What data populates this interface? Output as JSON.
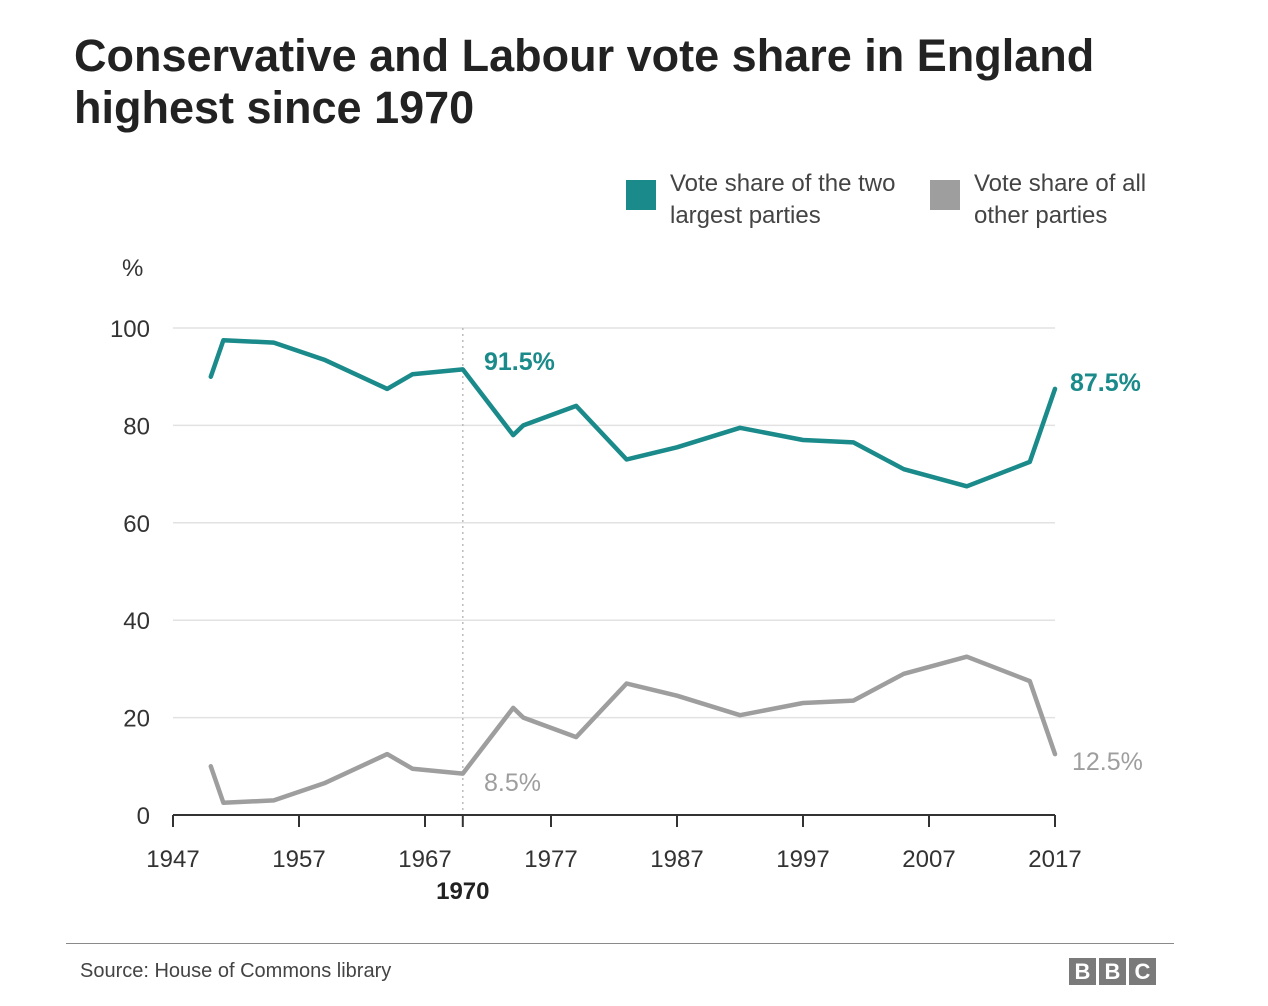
{
  "chart_data": {
    "type": "line",
    "title": "Conservative and Labour vote share in England highest since 1970",
    "ylabel": "%",
    "xlabel": "",
    "ylim": [
      0,
      100
    ],
    "xlim": [
      1947,
      2017
    ],
    "yticks": [
      0,
      20,
      40,
      60,
      80,
      100
    ],
    "xticks": [
      1947,
      1957,
      1967,
      1977,
      1987,
      1997,
      2007,
      2017
    ],
    "highlight_year": {
      "x": 1970,
      "label": "1970"
    },
    "grid": true,
    "legend_position": "top-right",
    "x": [
      1950,
      1951,
      1955,
      1959,
      1964,
      1966,
      1970,
      1974,
      1974.8,
      1979,
      1983,
      1987,
      1992,
      1997,
      2001,
      2005,
      2010,
      2015,
      2017
    ],
    "series": [
      {
        "name": "Vote share of the two largest parties",
        "color": "#1a8a8a",
        "values": [
          90,
          97.5,
          97,
          93.5,
          87.5,
          90.5,
          91.5,
          78,
          80,
          84,
          73,
          75.5,
          79.5,
          77,
          76.5,
          71,
          67.5,
          72.5,
          87.5
        ],
        "end_labels": {
          "1970": "91.5%",
          "2017": "87.5%"
        }
      },
      {
        "name": "Vote share of all other parties",
        "color": "#9e9e9e",
        "values": [
          10,
          2.5,
          3,
          6.5,
          12.5,
          9.5,
          8.5,
          22,
          20,
          16,
          27,
          24.5,
          20.5,
          23,
          23.5,
          29,
          32.5,
          27.5,
          12.5
        ],
        "end_labels": {
          "1970": "8.5%",
          "2017": "12.5%"
        }
      }
    ]
  },
  "header": {
    "title": "Conservative and Labour vote share in England highest since 1970"
  },
  "legend": {
    "items": [
      {
        "label": "Vote share of the two largest parties",
        "color": "#1a8a8a"
      },
      {
        "label": "Vote share of all other parties",
        "color": "#9e9e9e"
      }
    ]
  },
  "annotations": {
    "label_1970_major": "91.5%",
    "label_1970_minor": "8.5%",
    "label_2017_major": "87.5%",
    "label_2017_minor": "12.5%"
  },
  "footer": {
    "source": "Source: House of Commons library",
    "logo_letters": [
      "B",
      "B",
      "C"
    ]
  }
}
